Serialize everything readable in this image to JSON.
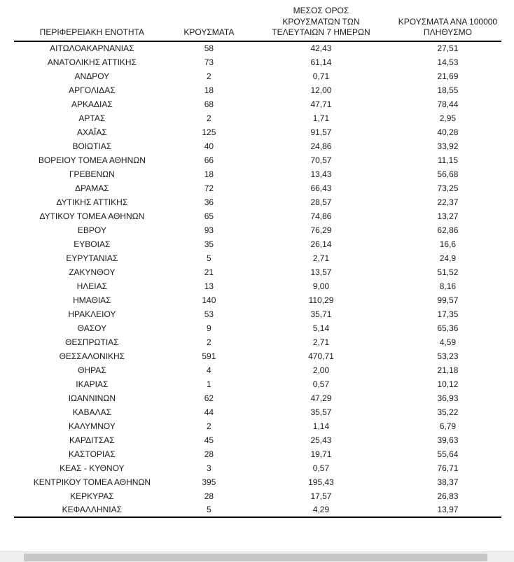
{
  "table": {
    "headers": {
      "region": "ΠΕΡΙΦΕΡΕΙΑΚΗ ΕΝΟΤΗΤΑ",
      "cases": "ΚΡΟΥΣΜΑΤΑ",
      "avg_7_days": "ΜΕΣΟΣ ΟΡΟΣ\nΚΡΟΥΣΜΑΤΩΝ ΤΩΝ\nΤΕΛΕΥΤΑΙΩΝ 7 ΗΜΕΡΩΝ",
      "per_100000": "ΚΡΟΥΣΜΑΤΑ ΑΝΑ 100000\nΠΛΗΘΥΣΜΟ"
    },
    "rows": [
      {
        "region": "ΑΙΤΩΛΟΑΚΑΡΝΑΝΙΑΣ",
        "cases": "58",
        "avg_7_days": "42,43",
        "per_100000": "27,51"
      },
      {
        "region": "ΑΝΑΤΟΛΙΚΗΣ ΑΤΤΙΚΗΣ",
        "cases": "73",
        "avg_7_days": "61,14",
        "per_100000": "14,53"
      },
      {
        "region": "ΑΝΔΡΟΥ",
        "cases": "2",
        "avg_7_days": "0,71",
        "per_100000": "21,69"
      },
      {
        "region": "ΑΡΓΟΛΙΔΑΣ",
        "cases": "18",
        "avg_7_days": "12,00",
        "per_100000": "18,55"
      },
      {
        "region": "ΑΡΚΑΔΙΑΣ",
        "cases": "68",
        "avg_7_days": "47,71",
        "per_100000": "78,44"
      },
      {
        "region": "ΑΡΤΑΣ",
        "cases": "2",
        "avg_7_days": "1,71",
        "per_100000": "2,95"
      },
      {
        "region": "ΑΧΑΪΑΣ",
        "cases": "125",
        "avg_7_days": "91,57",
        "per_100000": "40,28"
      },
      {
        "region": "ΒΟΙΩΤΙΑΣ",
        "cases": "40",
        "avg_7_days": "24,86",
        "per_100000": "33,92"
      },
      {
        "region": "ΒΟΡΕΙΟΥ ΤΟΜΕΑ ΑΘΗΝΩΝ",
        "cases": "66",
        "avg_7_days": "70,57",
        "per_100000": "11,15"
      },
      {
        "region": "ΓΡΕΒΕΝΩΝ",
        "cases": "18",
        "avg_7_days": "13,43",
        "per_100000": "56,68"
      },
      {
        "region": "ΔΡΑΜΑΣ",
        "cases": "72",
        "avg_7_days": "66,43",
        "per_100000": "73,25"
      },
      {
        "region": "ΔΥΤΙΚΗΣ ΑΤΤΙΚΗΣ",
        "cases": "36",
        "avg_7_days": "28,57",
        "per_100000": "22,37"
      },
      {
        "region": "ΔΥΤΙΚΟΥ ΤΟΜΕΑ ΑΘΗΝΩΝ",
        "cases": "65",
        "avg_7_days": "74,86",
        "per_100000": "13,27"
      },
      {
        "region": "ΕΒΡΟΥ",
        "cases": "93",
        "avg_7_days": "76,29",
        "per_100000": "62,86"
      },
      {
        "region": "ΕΥΒΟΙΑΣ",
        "cases": "35",
        "avg_7_days": "26,14",
        "per_100000": "16,6"
      },
      {
        "region": "ΕΥΡΥΤΑΝΙΑΣ",
        "cases": "5",
        "avg_7_days": "2,71",
        "per_100000": "24,9"
      },
      {
        "region": "ΖΑΚΥΝΘΟΥ",
        "cases": "21",
        "avg_7_days": "13,57",
        "per_100000": "51,52"
      },
      {
        "region": "ΗΛΕΙΑΣ",
        "cases": "13",
        "avg_7_days": "9,00",
        "per_100000": "8,16"
      },
      {
        "region": "ΗΜΑΘΙΑΣ",
        "cases": "140",
        "avg_7_days": "110,29",
        "per_100000": "99,57"
      },
      {
        "region": "ΗΡΑΚΛΕΙΟΥ",
        "cases": "53",
        "avg_7_days": "35,71",
        "per_100000": "17,35"
      },
      {
        "region": "ΘΑΣΟΥ",
        "cases": "9",
        "avg_7_days": "5,14",
        "per_100000": "65,36"
      },
      {
        "region": "ΘΕΣΠΡΩΤΙΑΣ",
        "cases": "2",
        "avg_7_days": "2,71",
        "per_100000": "4,59"
      },
      {
        "region": "ΘΕΣΣΑΛΟΝΙΚΗΣ",
        "cases": "591",
        "avg_7_days": "470,71",
        "per_100000": "53,23"
      },
      {
        "region": "ΘΗΡΑΣ",
        "cases": "4",
        "avg_7_days": "2,00",
        "per_100000": "21,18"
      },
      {
        "region": "ΙΚΑΡΙΑΣ",
        "cases": "1",
        "avg_7_days": "0,57",
        "per_100000": "10,12"
      },
      {
        "region": "ΙΩΑΝΝΙΝΩΝ",
        "cases": "62",
        "avg_7_days": "47,29",
        "per_100000": "36,93"
      },
      {
        "region": "ΚΑΒΑΛΑΣ",
        "cases": "44",
        "avg_7_days": "35,57",
        "per_100000": "35,22"
      },
      {
        "region": "ΚΑΛΥΜΝΟΥ",
        "cases": "2",
        "avg_7_days": "1,14",
        "per_100000": "6,79"
      },
      {
        "region": "ΚΑΡΔΙΤΣΑΣ",
        "cases": "45",
        "avg_7_days": "25,43",
        "per_100000": "39,63"
      },
      {
        "region": "ΚΑΣΤΟΡΙΑΣ",
        "cases": "28",
        "avg_7_days": "19,71",
        "per_100000": "55,64"
      },
      {
        "region": "ΚΕΑΣ - ΚΥΘΝΟΥ",
        "cases": "3",
        "avg_7_days": "0,57",
        "per_100000": "76,71"
      },
      {
        "region": "ΚΕΝΤΡΙΚΟΥ ΤΟΜΕΑ ΑΘΗΝΩΝ",
        "cases": "395",
        "avg_7_days": "195,43",
        "per_100000": "38,37"
      },
      {
        "region": "ΚΕΡΚΥΡΑΣ",
        "cases": "28",
        "avg_7_days": "17,57",
        "per_100000": "26,83"
      },
      {
        "region": "ΚΕΦΑΛΛΗΝΙΑΣ",
        "cases": "5",
        "avg_7_days": "4,29",
        "per_100000": "13,97"
      }
    ]
  }
}
